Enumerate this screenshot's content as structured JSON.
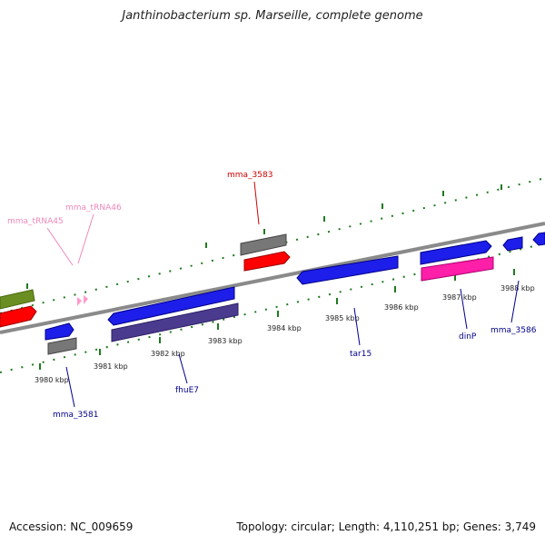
{
  "title": "Janthinobacterium sp. Marseille, complete genome",
  "footer": {
    "accession": "Accession: NC_009659",
    "summary": "Topology: circular; Length: 4,110,251 bp; Genes: 3,749"
  },
  "colors": {
    "backbone": "#8a8a8a",
    "tick": "#1f7a1f",
    "label_dark": "#00008b",
    "label_red": "#cc0000",
    "label_pink": "#ee88bb"
  },
  "ticks": [
    "3980 kbp",
    "3981 kbp",
    "3982 kbp",
    "3983 kbp",
    "3984 kbp",
    "3985 kbp",
    "3986 kbp",
    "3987 kbp",
    "3988 kbp"
  ],
  "gene_labels": [
    {
      "name": "mma_3581",
      "kind": "dark"
    },
    {
      "name": "fhuE7",
      "kind": "dark"
    },
    {
      "name": "tar15",
      "kind": "dark"
    },
    {
      "name": "dinP",
      "kind": "dark"
    },
    {
      "name": "mma_3586",
      "kind": "dark"
    },
    {
      "name": "mma_3583",
      "kind": "red"
    },
    {
      "name": "mma_tRNA45",
      "kind": "pink"
    },
    {
      "name": "mma_tRNA46",
      "kind": "pink"
    }
  ]
}
